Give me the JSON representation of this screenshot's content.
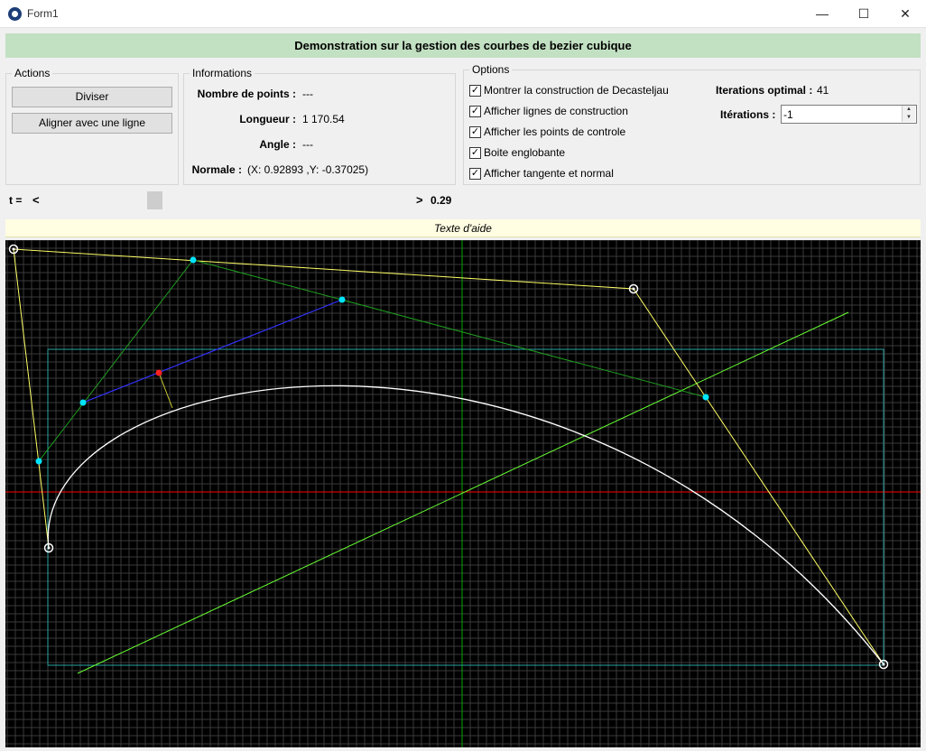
{
  "window": {
    "title": "Form1",
    "controls": {
      "minimize": "—",
      "maximize": "☐",
      "close": "✕"
    }
  },
  "header": {
    "title": "Demonstration sur la gestion des courbes de bezier cubique"
  },
  "actions": {
    "title": "Actions",
    "divide_label": "Diviser",
    "align_label": "Aligner avec une ligne"
  },
  "informations": {
    "title": "Informations",
    "rows": [
      {
        "label": "Nombre de points :",
        "value": "---"
      },
      {
        "label": "Longueur :",
        "value": "1 170.54"
      },
      {
        "label": "Angle :",
        "value": "---"
      },
      {
        "label": "Normale :",
        "value": "(X: 0.92893 ,Y: -0.37025)"
      }
    ]
  },
  "slider": {
    "label": "t =",
    "left_arrow": "<",
    "right_arrow": ">",
    "value_text": "0.29",
    "value": 0.29
  },
  "options": {
    "title": "Options",
    "checkboxes": [
      {
        "label": "Montrer la construction de Decasteljau",
        "checked": true
      },
      {
        "label": "Afficher lignes de construction",
        "checked": true
      },
      {
        "label": "Afficher les points de controle",
        "checked": true
      },
      {
        "label": "Boite englobante",
        "checked": true
      },
      {
        "label": "Afficher tangente et normal",
        "checked": true
      }
    ],
    "optimal_label": "Iterations optimal :",
    "optimal_value": "41",
    "iterations_label": "Itérations :",
    "iterations_value": "-1"
  },
  "help": {
    "text": "Texte d'aide"
  },
  "colors": {
    "header_band": "#c2e0c2",
    "help_bar": "#fffde2",
    "canvas_bg": "#000000",
    "grid": "#3a3a3a",
    "axis_x": "#ff0000",
    "axis_y": "#00aa00",
    "control_polygon": "#ffff66",
    "construction": "#1f9d1f",
    "tangent": "#3333ff",
    "normal_line": "#cccc33",
    "bounding_box": "#2aa3a3",
    "curve": "#ffffff",
    "diagonal": "#66ff33",
    "point_cyan": "#00e5ff",
    "point_red": "#ff2020"
  }
}
